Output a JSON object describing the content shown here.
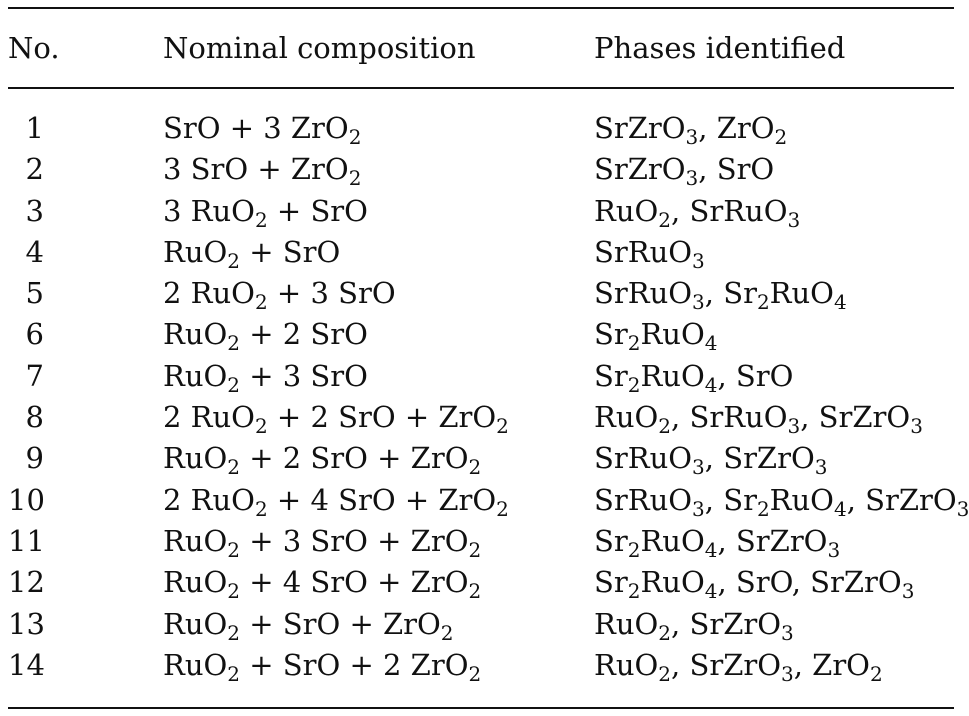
{
  "table": {
    "headers": {
      "no": "No.",
      "composition": "Nominal composition",
      "phases": "Phases identified"
    },
    "rows": [
      {
        "no": "1",
        "composition": "SrO + 3 ZrO_2",
        "phases": "SrZrO_3, ZrO_2"
      },
      {
        "no": "2",
        "composition": "3 SrO + ZrO_2",
        "phases": "SrZrO_3, SrO"
      },
      {
        "no": "3",
        "composition": "3 RuO_2 + SrO",
        "phases": "RuO_2, SrRuO_3"
      },
      {
        "no": "4",
        "composition": "RuO_2 + SrO",
        "phases": "SrRuO_3"
      },
      {
        "no": "5",
        "composition": "2 RuO_2 + 3 SrO",
        "phases": "SrRuO_3, Sr_2RuO_4"
      },
      {
        "no": "6",
        "composition": "RuO_2 + 2 SrO",
        "phases": "Sr_2RuO_4"
      },
      {
        "no": "7",
        "composition": "RuO_2 + 3 SrO",
        "phases": "Sr_2RuO_4, SrO"
      },
      {
        "no": "8",
        "composition": "2 RuO_2 + 2 SrO + ZrO_2",
        "phases": "RuO_2, SrRuO_3, SrZrO_3"
      },
      {
        "no": "9",
        "composition": "RuO_2 + 2 SrO + ZrO_2",
        "phases": "SrRuO_3, SrZrO_3"
      },
      {
        "no": "10",
        "composition": "2 RuO_2 + 4 SrO + ZrO_2",
        "phases": "SrRuO_3, Sr_2RuO_4, SrZrO_3"
      },
      {
        "no": "11",
        "composition": "RuO_2 + 3 SrO + ZrO_2",
        "phases": "Sr_2RuO_4, SrZrO_3"
      },
      {
        "no": "12",
        "composition": "RuO_2 + 4 SrO + ZrO_2",
        "phases": "Sr_2RuO_4, SrO, SrZrO_3"
      },
      {
        "no": "13",
        "composition": "RuO_2 + SrO + ZrO_2",
        "phases": "RuO_2, SrZrO_3"
      },
      {
        "no": "14",
        "composition": "RuO_2 + SrO + 2 ZrO_2",
        "phases": "RuO_2, SrZrO_3, ZrO_2"
      }
    ]
  }
}
